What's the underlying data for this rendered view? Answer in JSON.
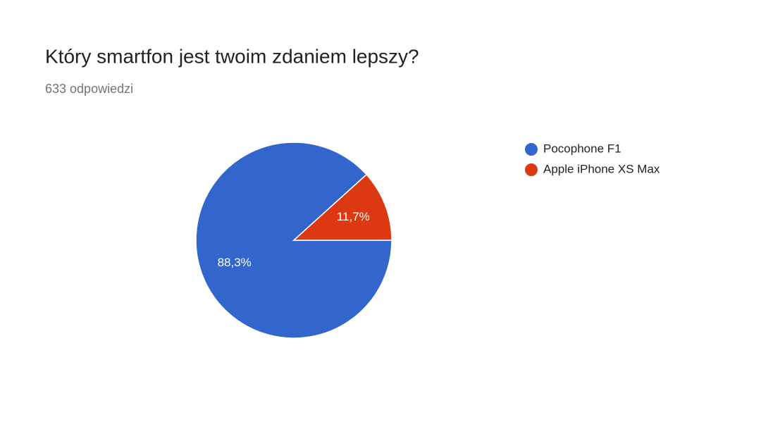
{
  "chart_data": {
    "type": "pie",
    "title": "Który smartfon jest twoim zdaniem lepszy?",
    "subtitle": "633 odpowiedzi",
    "categories": [
      "Pocophone F1",
      "Apple iPhone XS Max"
    ],
    "values": [
      88.3,
      11.7
    ],
    "value_labels": [
      "88,3%",
      "11,7%"
    ],
    "colors": [
      "#3366cc",
      "#dc3912"
    ],
    "legend": "right"
  }
}
